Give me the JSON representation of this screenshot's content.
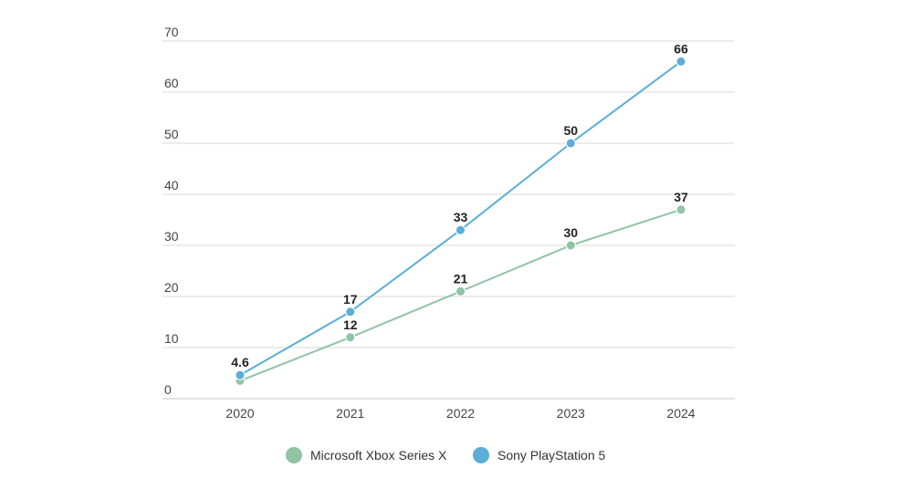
{
  "chart_data": {
    "type": "line",
    "title": "",
    "xlabel": "",
    "ylabel": "",
    "categories": [
      "2020",
      "2021",
      "2022",
      "2023",
      "2024"
    ],
    "ylim": [
      0,
      70
    ],
    "yticks": [
      0,
      10,
      20,
      30,
      40,
      50,
      60,
      70
    ],
    "grid": true,
    "legend_placement": "bottom",
    "series": [
      {
        "name": "Microsoft Xbox Series X",
        "color": "#8fc4a4",
        "values": [
          3.5,
          12,
          21,
          30,
          37
        ],
        "labels": [
          null,
          "12",
          "21",
          "30",
          "37"
        ]
      },
      {
        "name": "Sony PlayStation 5",
        "color": "#5aaed8",
        "values": [
          4.6,
          17,
          33,
          50,
          66
        ],
        "labels": [
          "4.6",
          "17",
          "33",
          "50",
          "66"
        ]
      }
    ]
  }
}
